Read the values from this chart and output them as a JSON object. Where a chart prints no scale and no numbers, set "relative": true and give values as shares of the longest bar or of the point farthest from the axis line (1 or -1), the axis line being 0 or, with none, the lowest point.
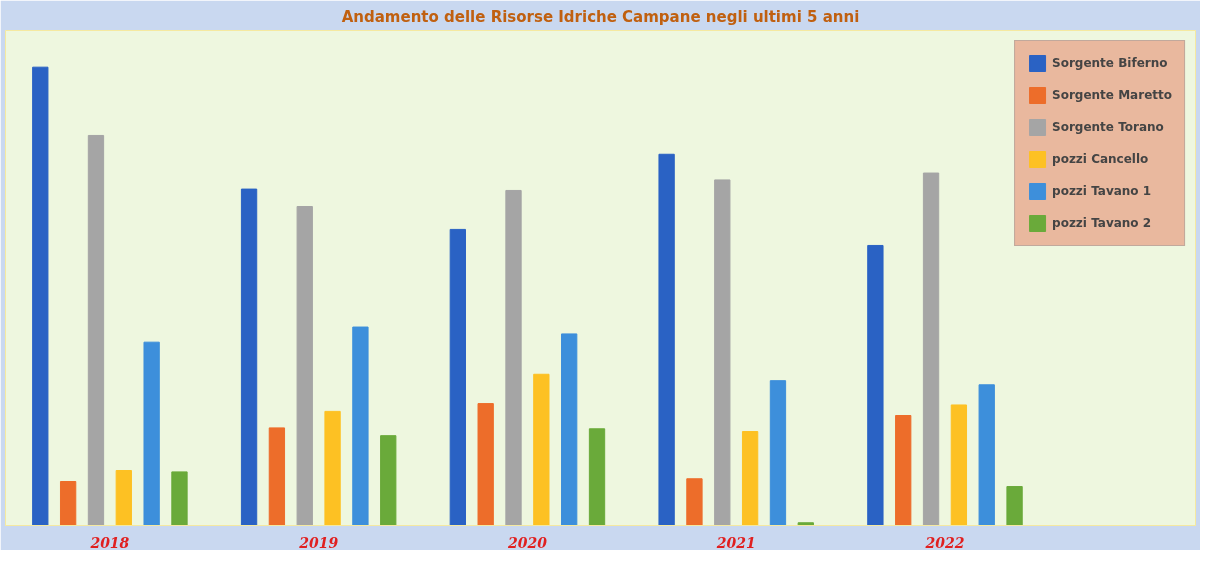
{
  "chart_data": {
    "type": "bar",
    "title": "Andamento delle Risorse Idriche Campane negli ultimi 5 anni",
    "categories": [
      "2018",
      "2019",
      "2020",
      "2021",
      "2022"
    ],
    "relative": true,
    "legend": "top right",
    "grid": false,
    "series": [
      {
        "name": "Sorgente Biferno",
        "color": "#2a62c4",
        "values": [
          1,
          0.734,
          0.646,
          0.81,
          0.611
        ]
      },
      {
        "name": "Sorgente Maretto",
        "color": "#ed6d2a",
        "values": [
          0.096,
          0.213,
          0.266,
          0.102,
          0.24
        ]
      },
      {
        "name": "Sorgente Torano",
        "color": "#a5a5a5",
        "values": [
          0.851,
          0.696,
          0.731,
          0.754,
          0.769
        ]
      },
      {
        "name": "pozzi Cancello",
        "color": "#fdc123",
        "values": [
          0.12,
          0.249,
          0.33,
          0.205,
          0.263
        ]
      },
      {
        "name": "pozzi Tavano 1",
        "color": "#3d8fdb",
        "values": [
          0.4,
          0.433,
          0.418,
          0.316,
          0.307
        ]
      },
      {
        "name": "pozzi Tavano 2",
        "color": "#6aaa3a",
        "values": [
          0.117,
          0.196,
          0.211,
          0.006,
          0.085
        ]
      }
    ]
  }
}
